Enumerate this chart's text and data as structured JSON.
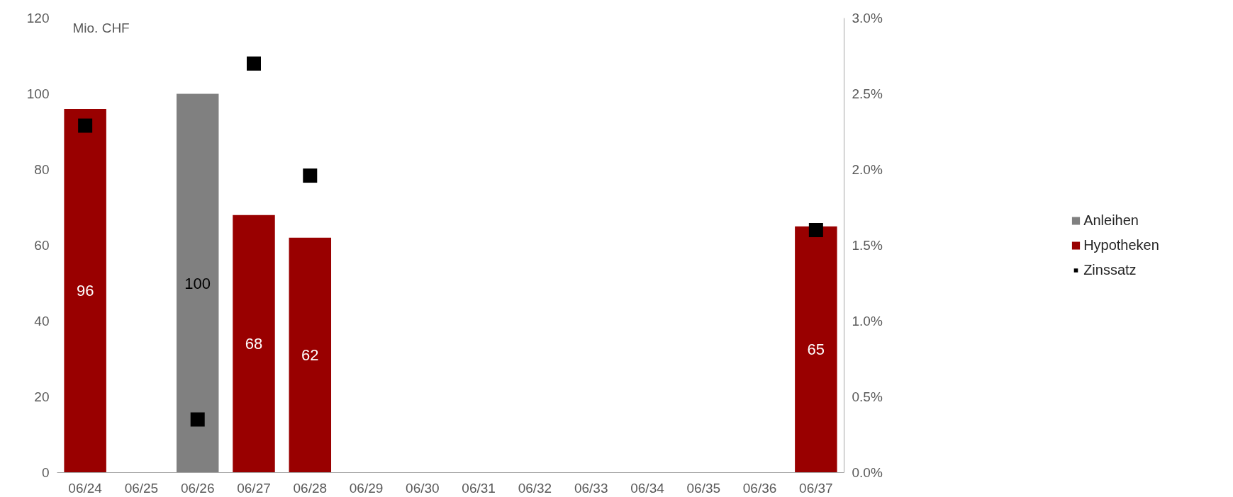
{
  "chart_data": {
    "type": "bar",
    "ylabel": "Mio. CHF",
    "categories": [
      "06/24",
      "06/25",
      "06/26",
      "06/27",
      "06/28",
      "06/29",
      "06/30",
      "06/31",
      "06/32",
      "06/33",
      "06/34",
      "06/35",
      "06/36",
      "06/37"
    ],
    "series": [
      {
        "name": "Anleihen",
        "color": "#808080",
        "values": [
          null,
          null,
          100,
          null,
          null,
          null,
          null,
          null,
          null,
          null,
          null,
          null,
          null,
          null
        ],
        "value_labels": [
          null,
          null,
          "100",
          null,
          null,
          null,
          null,
          null,
          null,
          null,
          null,
          null,
          null,
          null
        ]
      },
      {
        "name": "Hypotheken",
        "color": "#990000",
        "values": [
          96,
          null,
          null,
          68,
          62,
          null,
          null,
          null,
          null,
          null,
          null,
          null,
          null,
          65
        ],
        "value_labels": [
          "96",
          null,
          null,
          "68",
          "62",
          null,
          null,
          null,
          null,
          null,
          null,
          null,
          null,
          "65"
        ]
      },
      {
        "name": "Zinssatz",
        "type": "scatter",
        "axis": "y2",
        "marker": "square",
        "color": "#000000",
        "values": [
          2.29,
          null,
          0.35,
          2.7,
          1.96,
          null,
          null,
          null,
          null,
          null,
          null,
          null,
          null,
          1.6
        ]
      }
    ],
    "ylim": [
      0,
      120
    ],
    "yticks": [
      0,
      20,
      40,
      60,
      80,
      100,
      120
    ],
    "y2lim": [
      0,
      3.0
    ],
    "y2ticks": [
      {
        "value": 0,
        "label": "0.0%"
      },
      {
        "value": 0.5,
        "label": "0.5%"
      },
      {
        "value": 1.0,
        "label": "1.0%"
      },
      {
        "value": 1.5,
        "label": "1.5%"
      },
      {
        "value": 2.0,
        "label": "2.0%"
      },
      {
        "value": 2.5,
        "label": "2.5%"
      },
      {
        "value": 3.0,
        "label": "3.0%"
      }
    ],
    "grid": false,
    "legend": "right"
  }
}
